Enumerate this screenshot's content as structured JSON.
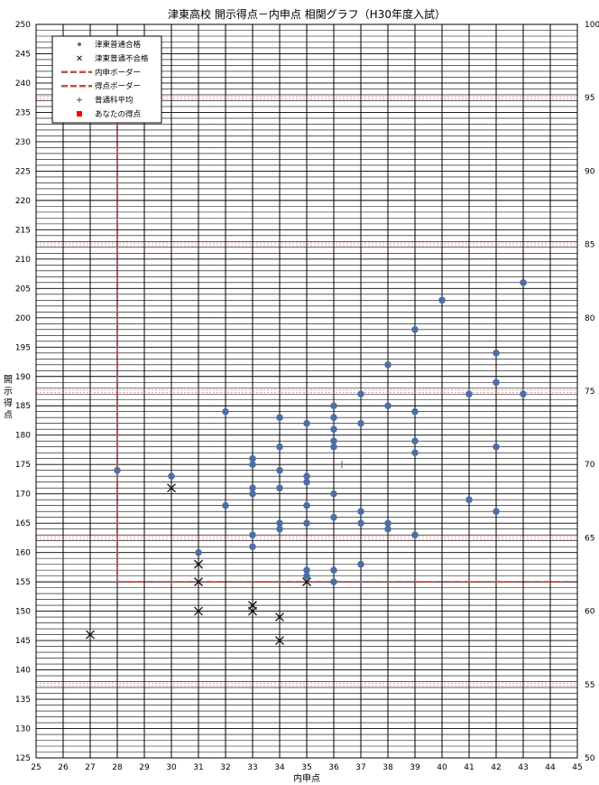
{
  "chart_data": {
    "type": "scatter",
    "title": "津東高校 開示得点－内申点 相関グラフ（H30年度入試）",
    "xlabel": "内申点",
    "ylabel": "開示得点",
    "xlim": [
      25,
      45
    ],
    "ylim": [
      125,
      250
    ],
    "y2lim": [
      50,
      100
    ],
    "x_ticks": [
      25,
      26,
      27,
      28,
      29,
      30,
      31,
      32,
      33,
      34,
      35,
      36,
      37,
      38,
      39,
      40,
      41,
      42,
      43,
      44,
      45
    ],
    "y_ticks": [
      125,
      130,
      135,
      140,
      145,
      150,
      155,
      160,
      165,
      170,
      175,
      180,
      185,
      190,
      195,
      200,
      205,
      210,
      215,
      220,
      225,
      230,
      235,
      240,
      245,
      250
    ],
    "y2_ticks": [
      50,
      55,
      60,
      65,
      70,
      75,
      80,
      85,
      90,
      95,
      100
    ],
    "grid": true,
    "legend_position": "top-left",
    "legend": [
      {
        "label": "津東普通合格",
        "marker": "dot"
      },
      {
        "label": "津東普通不合格",
        "marker": "x"
      },
      {
        "label": "内申ボーダー",
        "marker": "dash"
      },
      {
        "label": "得点ボーダー",
        "marker": "dash"
      },
      {
        "label": "普通科平均",
        "marker": "plus"
      },
      {
        "label": "あなたの得点",
        "marker": "square"
      }
    ],
    "colors": {
      "pass": "#4a6fa5",
      "fail": "#111111",
      "border": "#c0504d",
      "average": "#555555",
      "you": "#ff0000",
      "grid": "#000000"
    },
    "series": [
      {
        "name": "津東普通合格",
        "points": [
          [
            28,
            174
          ],
          [
            30,
            173
          ],
          [
            31,
            160
          ],
          [
            32,
            184
          ],
          [
            32,
            168
          ],
          [
            33,
            176
          ],
          [
            33,
            175
          ],
          [
            33,
            171
          ],
          [
            33,
            170
          ],
          [
            33,
            163
          ],
          [
            33,
            161
          ],
          [
            34,
            183
          ],
          [
            34,
            178
          ],
          [
            34,
            174
          ],
          [
            34,
            171
          ],
          [
            34,
            165
          ],
          [
            34,
            164
          ],
          [
            35,
            182
          ],
          [
            35,
            173
          ],
          [
            35,
            172
          ],
          [
            35,
            168
          ],
          [
            35,
            165
          ],
          [
            35,
            157
          ],
          [
            35,
            156
          ],
          [
            36,
            185
          ],
          [
            36,
            183
          ],
          [
            36,
            181
          ],
          [
            36,
            179
          ],
          [
            36,
            178
          ],
          [
            36,
            170
          ],
          [
            36,
            166
          ],
          [
            36,
            157
          ],
          [
            36,
            155
          ],
          [
            37,
            187
          ],
          [
            37,
            182
          ],
          [
            37,
            167
          ],
          [
            37,
            165
          ],
          [
            37,
            158
          ],
          [
            38,
            192
          ],
          [
            38,
            185
          ],
          [
            38,
            165
          ],
          [
            38,
            164
          ],
          [
            39,
            198
          ],
          [
            39,
            184
          ],
          [
            39,
            179
          ],
          [
            39,
            177
          ],
          [
            39,
            163
          ],
          [
            40,
            203
          ],
          [
            41,
            187
          ],
          [
            41,
            169
          ],
          [
            42,
            194
          ],
          [
            42,
            189
          ],
          [
            42,
            178
          ],
          [
            42,
            167
          ],
          [
            43,
            206
          ],
          [
            43,
            187
          ]
        ]
      },
      {
        "name": "津東普通不合格",
        "points": [
          [
            27,
            146
          ],
          [
            30,
            171
          ],
          [
            31,
            158
          ],
          [
            31,
            155
          ],
          [
            31,
            150
          ],
          [
            33,
            151
          ],
          [
            33,
            150
          ],
          [
            34,
            149
          ],
          [
            34,
            145
          ],
          [
            35,
            155
          ]
        ]
      },
      {
        "name": "普通科平均",
        "points": [
          [
            36.3,
            175
          ]
        ]
      }
    ],
    "naishin_border": 28,
    "score_border": 155
  }
}
